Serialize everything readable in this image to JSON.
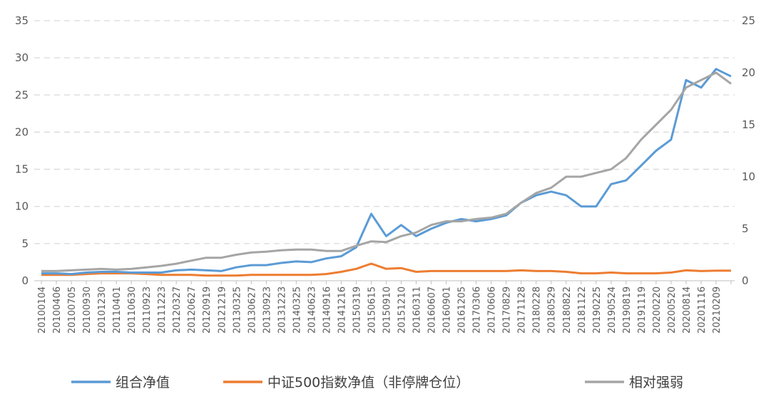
{
  "chart_data": {
    "type": "line",
    "categories": [
      "20100104",
      "20100406",
      "20100705",
      "20100930",
      "20101230",
      "20110401",
      "20110630",
      "20110923",
      "20111223",
      "20120327",
      "20120627",
      "20120919",
      "20121219",
      "20130325",
      "20130627",
      "20130923",
      "20131223",
      "20140325",
      "20140623",
      "20140916",
      "20141216",
      "20150319",
      "20150615",
      "20150910",
      "20151210",
      "20160311",
      "20160607",
      "20160901",
      "20161205",
      "20170306",
      "20170606",
      "20170829",
      "20171128",
      "20180228",
      "20180529",
      "20180822",
      "20181122",
      "20190225",
      "20190524",
      "20190819",
      "20191119",
      "20200220",
      "20200520",
      "20200814",
      "20201116",
      "20210209",
      null
    ],
    "series": [
      {
        "name": "组合净值",
        "color": "#5b9bd5",
        "values": [
          1.0,
          1.0,
          0.9,
          1.1,
          1.2,
          1.2,
          1.1,
          1.1,
          1.1,
          1.4,
          1.5,
          1.4,
          1.3,
          1.8,
          2.1,
          2.1,
          2.4,
          2.6,
          2.5,
          3.0,
          3.3,
          4.5,
          9.0,
          6.0,
          7.5,
          6.0,
          7.0,
          7.8,
          8.3,
          8.0,
          8.3,
          8.8,
          10.5,
          11.5,
          12.0,
          11.5,
          10.0,
          10.0,
          13.0,
          13.5,
          15.5,
          17.5,
          19.0,
          27.0,
          26.0,
          28.5,
          27.5
        ]
      },
      {
        "name": "中证500指数净值（非停牌仓位）",
        "color": "#ed7d31",
        "values": [
          0.8,
          0.8,
          0.8,
          0.9,
          1.0,
          1.0,
          1.0,
          0.9,
          0.8,
          0.8,
          0.8,
          0.7,
          0.7,
          0.7,
          0.8,
          0.8,
          0.8,
          0.8,
          0.8,
          0.9,
          1.2,
          1.6,
          2.3,
          1.6,
          1.7,
          1.2,
          1.3,
          1.3,
          1.3,
          1.3,
          1.3,
          1.3,
          1.4,
          1.3,
          1.3,
          1.2,
          1.0,
          1.0,
          1.1,
          1.0,
          1.0,
          1.0,
          1.1,
          1.4,
          1.3,
          1.35,
          1.35
        ]
      },
      {
        "name": "相对强弱",
        "color": "#a5a5a5",
        "axis": "y2",
        "values": [
          0.93,
          0.93,
          1.0,
          1.07,
          1.14,
          1.07,
          1.14,
          1.29,
          1.43,
          1.64,
          1.93,
          2.21,
          2.21,
          2.5,
          2.71,
          2.79,
          2.93,
          3.0,
          3.0,
          2.86,
          2.86,
          3.36,
          3.79,
          3.71,
          4.29,
          4.64,
          5.36,
          5.71,
          5.71,
          5.93,
          6.07,
          6.43,
          7.5,
          8.43,
          8.93,
          10.0,
          10.0,
          10.36,
          10.71,
          11.79,
          13.57,
          15.0,
          16.43,
          18.57,
          19.29,
          20.0,
          18.93
        ]
      }
    ],
    "ylim": [
      0,
      35
    ],
    "yticks": [
      0,
      5,
      10,
      15,
      20,
      25,
      30,
      35
    ],
    "y2lim": [
      0,
      25
    ],
    "y2ticks": [
      0,
      5,
      10,
      15,
      20,
      25
    ],
    "grid": true,
    "legend": "bottom"
  }
}
